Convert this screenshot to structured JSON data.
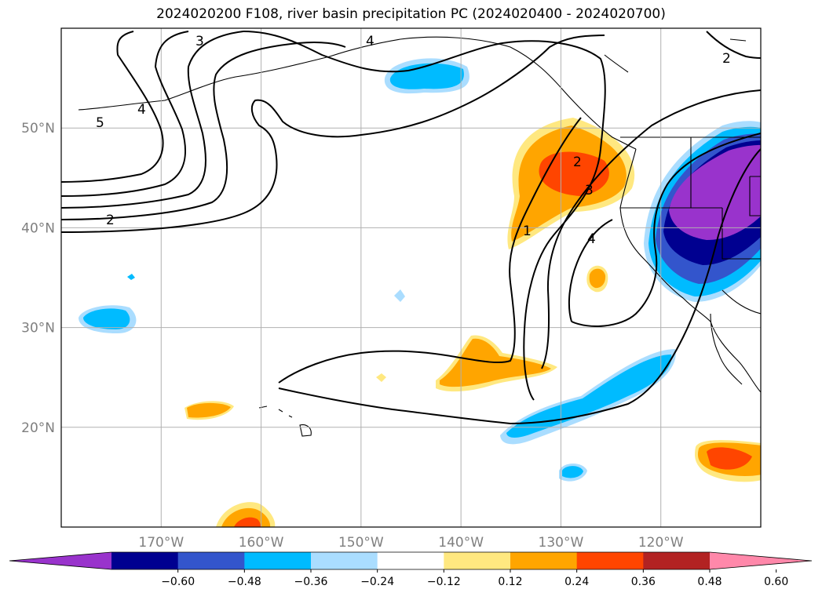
{
  "title": "2024020200 F108, river basin precipitation PC (2024020400 - 2024020700)",
  "map": {
    "lon_range": [
      -180,
      -110
    ],
    "lat_range": [
      10,
      60
    ],
    "lat_ticks": [
      {
        "value": 50,
        "label": "50°N"
      },
      {
        "value": 40,
        "label": "40°N"
      },
      {
        "value": 30,
        "label": "30°N"
      },
      {
        "value": 20,
        "label": "20°N"
      }
    ],
    "lon_ticks": [
      {
        "value": -170,
        "label": "170°W"
      },
      {
        "value": -160,
        "label": "160°W"
      },
      {
        "value": -150,
        "label": "150°W"
      },
      {
        "value": -140,
        "label": "140°W"
      },
      {
        "value": -130,
        "label": "130°W"
      },
      {
        "value": -120,
        "label": "120°W"
      }
    ],
    "grid": true,
    "contour_labels": [
      "3",
      "4",
      "5",
      "4",
      "2",
      "2",
      "1",
      "2",
      "3",
      "4"
    ]
  },
  "colorbar": {
    "ticks": [
      "−0.60",
      "−0.48",
      "−0.36",
      "−0.24",
      "−0.12",
      "0.12",
      "0.24",
      "0.36",
      "0.48",
      "0.60"
    ],
    "colors": [
      "#9933cc",
      "#000090",
      "#3355cc",
      "#00bbff",
      "#aaddff",
      "#ffffff",
      "#ffe880",
      "#ffa500",
      "#ff4500",
      "#b22222",
      "#ff88aa"
    ]
  }
}
